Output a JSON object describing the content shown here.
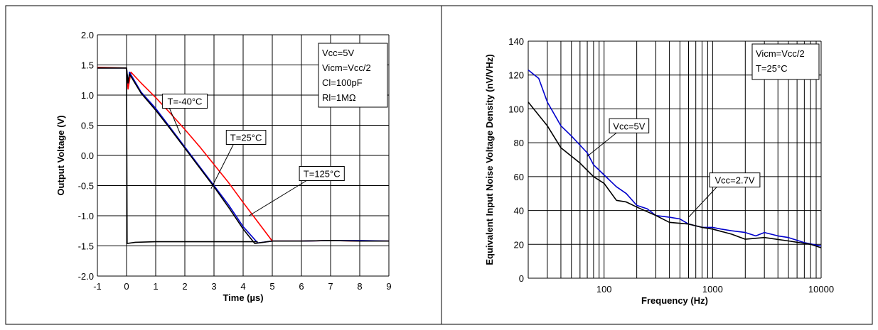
{
  "chart_data": [
    {
      "type": "line",
      "xlabel": "Time (µs)",
      "ylabel": "Output Voltage (V)",
      "xlim": [
        -1,
        9
      ],
      "ylim": [
        -2.0,
        2.0
      ],
      "x_ticks": [
        "-1",
        "0",
        "1",
        "2",
        "3",
        "4",
        "5",
        "6",
        "7",
        "8",
        "9"
      ],
      "y_ticks": [
        "2.0",
        "1.5",
        "1.0",
        "0.5",
        "0.0",
        "-0.5",
        "-1.0",
        "-1.5",
        "-2.0"
      ],
      "grid": true,
      "conditions": [
        "Vcc=5V",
        "Vicm=Vcc/2",
        "Cl=100pF",
        "Rl=1MΩ"
      ],
      "series": [
        {
          "name": "T=-40°C",
          "color": "#ff0000",
          "points": [
            [
              -1,
              1.46
            ],
            [
              0,
              1.45
            ],
            [
              0.05,
              1.1
            ],
            [
              0.15,
              1.38
            ],
            [
              0.5,
              1.2
            ],
            [
              1.0,
              0.96
            ],
            [
              1.5,
              0.7
            ],
            [
              2.0,
              0.43
            ],
            [
              2.5,
              0.15
            ],
            [
              3.0,
              -0.15
            ],
            [
              3.5,
              -0.45
            ],
            [
              4.0,
              -0.78
            ],
            [
              4.5,
              -1.1
            ],
            [
              5.0,
              -1.42
            ],
            [
              6.0,
              -1.42
            ],
            [
              7.0,
              -1.41
            ],
            [
              8.0,
              -1.42
            ],
            [
              9.0,
              -1.42
            ]
          ]
        },
        {
          "name": "T=25°C",
          "color": "#0000cc",
          "points": [
            [
              -1,
              1.45
            ],
            [
              0,
              1.45
            ],
            [
              0.05,
              1.2
            ],
            [
              0.1,
              1.38
            ],
            [
              0.5,
              1.05
            ],
            [
              1.0,
              0.78
            ],
            [
              1.5,
              0.46
            ],
            [
              2.0,
              0.14
            ],
            [
              2.5,
              -0.18
            ],
            [
              3.0,
              -0.5
            ],
            [
              3.5,
              -0.82
            ],
            [
              4.0,
              -1.18
            ],
            [
              4.5,
              -1.45
            ],
            [
              5.0,
              -1.42
            ],
            [
              6.0,
              -1.42
            ],
            [
              7.0,
              -1.41
            ],
            [
              8.0,
              -1.41
            ],
            [
              9.0,
              -1.42
            ]
          ]
        },
        {
          "name": "T=125°C",
          "color": "#000000",
          "points": [
            [
              -1,
              1.45
            ],
            [
              0,
              1.45
            ],
            [
              0.05,
              1.2
            ],
            [
              0.1,
              1.35
            ],
            [
              0.5,
              1.03
            ],
            [
              1.0,
              0.75
            ],
            [
              1.5,
              0.44
            ],
            [
              2.0,
              0.12
            ],
            [
              2.5,
              -0.2
            ],
            [
              3.0,
              -0.52
            ],
            [
              3.5,
              -0.86
            ],
            [
              4.0,
              -1.22
            ],
            [
              4.4,
              -1.46
            ],
            [
              5.0,
              -1.42
            ],
            [
              6.0,
              -1.42
            ],
            [
              7.0,
              -1.41
            ],
            [
              8.0,
              -1.42
            ],
            [
              9.0,
              -1.42
            ]
          ]
        },
        {
          "name": "",
          "color": "#000000",
          "points": [
            [
              -1,
              1.45
            ],
            [
              0,
              1.45
            ],
            [
              0.02,
              -1.46
            ],
            [
              0.3,
              -1.44
            ],
            [
              1,
              -1.43
            ],
            [
              2,
              -1.43
            ],
            [
              3,
              -1.43
            ],
            [
              4,
              -1.43
            ],
            [
              4.5,
              -1.43
            ]
          ]
        }
      ],
      "annotations": [
        {
          "text": "T=-40°C",
          "box_at": [
            2.0,
            0.9
          ],
          "arrow_to": [
            1.85,
            0.35
          ]
        },
        {
          "text": "T=25°C",
          "box_at": [
            4.1,
            0.3
          ],
          "arrow_to": [
            2.9,
            -0.55
          ]
        },
        {
          "text": "T=125°C",
          "box_at": [
            6.7,
            -0.3
          ],
          "arrow_to": [
            4.2,
            -1.0
          ]
        }
      ]
    },
    {
      "type": "line",
      "xlabel": "Frequency (Hz)",
      "ylabel": "Equivalent Input Noise Voltage Density (nV/VHz)",
      "xscale": "log",
      "xlim": [
        20,
        10000
      ],
      "ylim": [
        0,
        140
      ],
      "x_ticks": [
        "100",
        "1000",
        "10000"
      ],
      "y_ticks": [
        "140",
        "120",
        "100",
        "80",
        "60",
        "40",
        "20",
        "0"
      ],
      "grid": true,
      "conditions": [
        "Vicm=Vcc/2",
        "T=25°C"
      ],
      "series": [
        {
          "name": "Vcc=5V",
          "color": "#0000cc",
          "points": [
            [
              20,
              123
            ],
            [
              25,
              118
            ],
            [
              30,
              104
            ],
            [
              40,
              90
            ],
            [
              50,
              84
            ],
            [
              70,
              74
            ],
            [
              80,
              67
            ],
            [
              100,
              61
            ],
            [
              130,
              54
            ],
            [
              160,
              50
            ],
            [
              200,
              43
            ],
            [
              250,
              41
            ],
            [
              300,
              37
            ],
            [
              400,
              36
            ],
            [
              500,
              35
            ],
            [
              600,
              32
            ],
            [
              800,
              30
            ],
            [
              1000,
              30
            ],
            [
              1200,
              29
            ],
            [
              1500,
              28
            ],
            [
              2000,
              27
            ],
            [
              2500,
              25
            ],
            [
              3000,
              27
            ],
            [
              4000,
              25
            ],
            [
              5000,
              24
            ],
            [
              7000,
              21
            ],
            [
              10000,
              19
            ]
          ]
        },
        {
          "name": "Vcc=2.7V",
          "color": "#000000",
          "points": [
            [
              20,
              104
            ],
            [
              30,
              90
            ],
            [
              40,
              77
            ],
            [
              60,
              68
            ],
            [
              80,
              60
            ],
            [
              100,
              56
            ],
            [
              130,
              46
            ],
            [
              160,
              45
            ],
            [
              200,
              42
            ],
            [
              300,
              37
            ],
            [
              400,
              33
            ],
            [
              600,
              32
            ],
            [
              800,
              30
            ],
            [
              1000,
              29
            ],
            [
              1500,
              26
            ],
            [
              2000,
              23
            ],
            [
              3000,
              24
            ],
            [
              5000,
              22
            ],
            [
              8000,
              20
            ],
            [
              10000,
              18
            ]
          ]
        }
      ],
      "annotations": [
        {
          "text": "Vcc=5V",
          "box_at": [
            170,
            90
          ],
          "arrow_to": [
            70,
            72
          ]
        },
        {
          "text": "Vcc=2.7V",
          "box_at": [
            1600,
            58
          ],
          "arrow_to": [
            600,
            36
          ]
        }
      ]
    }
  ]
}
